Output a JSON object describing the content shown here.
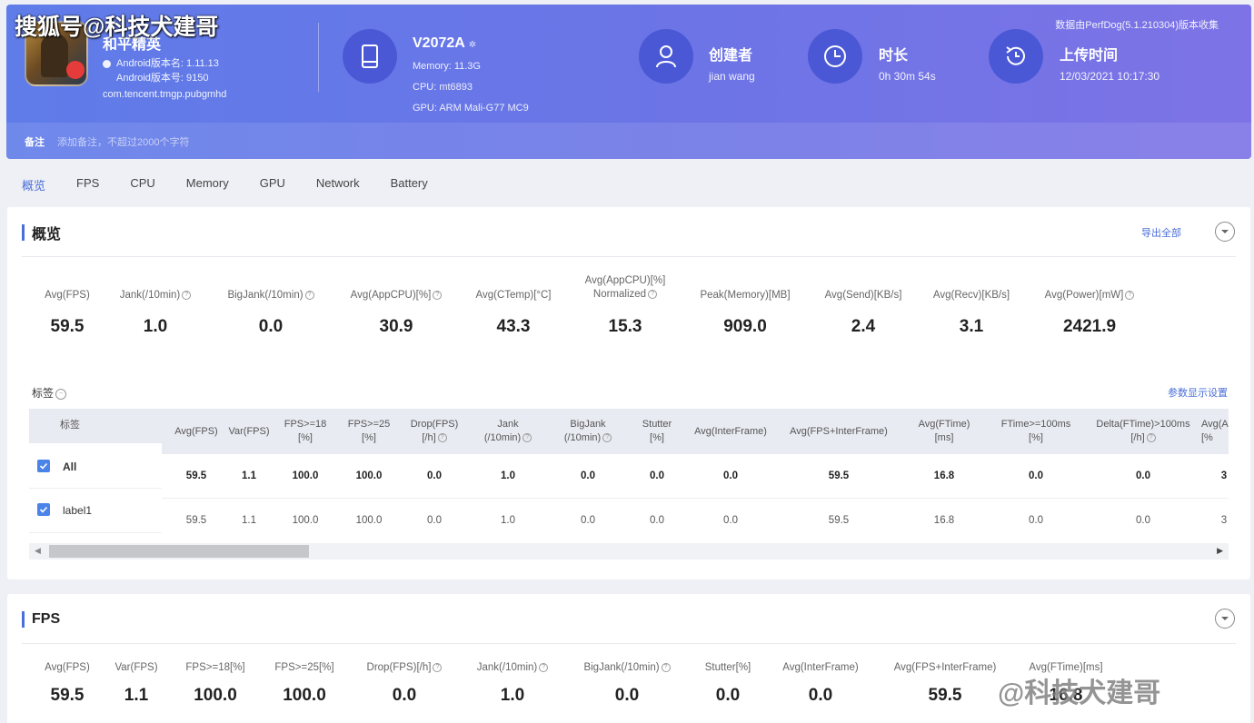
{
  "watermark_top": "搜狐号@科技犬建哥",
  "watermark_bottom": "@科技犬建哥",
  "app": {
    "title": "和平精英",
    "version_name": "Android版本名: 1.11.13",
    "version_code": "Android版本号: 9150",
    "package": "com.tencent.tmgp.pubgmhd"
  },
  "device": {
    "name": "V2072A",
    "memory": "Memory: 11.3G",
    "cpu": "CPU: mt6893",
    "gpu": "GPU: ARM Mali-G77 MC9"
  },
  "creator": {
    "title": "创建者",
    "value": "jian wang"
  },
  "duration": {
    "title": "时长",
    "value": "0h 30m 54s"
  },
  "upload": {
    "title": "上传时间",
    "value": "12/03/2021 10:17:30"
  },
  "record_info": "数据由PerfDog(5.1.210304)版本收集",
  "note": {
    "label": "备注",
    "placeholder": "添加备注，不超过2000个字符"
  },
  "tabs": [
    "概览",
    "FPS",
    "CPU",
    "Memory",
    "GPU",
    "Network",
    "Battery"
  ],
  "overview": {
    "title": "概览",
    "export": "导出全部",
    "metrics": [
      {
        "label": "Avg(FPS)",
        "value": "59.5"
      },
      {
        "label": "Jank(/10min)",
        "value": "1.0"
      },
      {
        "label": "BigJank(/10min)",
        "value": "0.0"
      },
      {
        "label": "Avg(AppCPU)[%]",
        "value": "30.9"
      },
      {
        "label": "Avg(CTemp)[°C]",
        "value": "43.3"
      },
      {
        "label": "Avg(AppCPU)[%]",
        "label2": "Normalized",
        "value": "15.3"
      },
      {
        "label": "Peak(Memory)[MB]",
        "value": "909.0"
      },
      {
        "label": "Avg(Send)[KB/s]",
        "value": "2.4"
      },
      {
        "label": "Avg(Recv)[KB/s]",
        "value": "3.1"
      },
      {
        "label": "Avg(Power)[mW]",
        "value": "2421.9"
      }
    ],
    "labels_title": "标签",
    "labels_setting": "参数显示设置",
    "table": {
      "label_header": "标签",
      "headers": [
        {
          "l1": "Avg(FPS)",
          "l2": ""
        },
        {
          "l1": "Var(FPS)",
          "l2": ""
        },
        {
          "l1": "FPS>=18",
          "l2": "[%]"
        },
        {
          "l1": "FPS>=25",
          "l2": "[%]"
        },
        {
          "l1": "Drop(FPS)",
          "l2": "[/h]"
        },
        {
          "l1": "Jank",
          "l2": "(/10min)"
        },
        {
          "l1": "BigJank",
          "l2": "(/10min)"
        },
        {
          "l1": "Stutter",
          "l2": "[%]"
        },
        {
          "l1": "Avg(InterFrame)",
          "l2": ""
        },
        {
          "l1": "Avg(FPS+InterFrame)",
          "l2": ""
        },
        {
          "l1": "Avg(FTime)",
          "l2": "[ms]"
        },
        {
          "l1": "FTime>=100ms",
          "l2": "[%]"
        },
        {
          "l1": "Delta(FTime)>100ms",
          "l2": "[/h]"
        },
        {
          "l1": "Avg(A",
          "l2": "[%"
        }
      ],
      "rows": [
        {
          "name": "All",
          "cells": [
            "59.5",
            "1.1",
            "100.0",
            "100.0",
            "0.0",
            "1.0",
            "0.0",
            "0.0",
            "0.0",
            "59.5",
            "16.8",
            "0.0",
            "0.0",
            "3"
          ]
        },
        {
          "name": "label1",
          "cells": [
            "59.5",
            "1.1",
            "100.0",
            "100.0",
            "0.0",
            "1.0",
            "0.0",
            "0.0",
            "0.0",
            "59.5",
            "16.8",
            "0.0",
            "0.0",
            "3"
          ]
        }
      ]
    }
  },
  "fps_section": {
    "title": "FPS",
    "metrics": [
      {
        "label": "Avg(FPS)",
        "value": "59.5"
      },
      {
        "label": "Var(FPS)",
        "value": "1.1"
      },
      {
        "label": "FPS>=18[%]",
        "value": "100.0"
      },
      {
        "label": "FPS>=25[%]",
        "value": "100.0"
      },
      {
        "label": "Drop(FPS)[/h]",
        "value": "0.0"
      },
      {
        "label": "Jank(/10min)",
        "value": "1.0"
      },
      {
        "label": "BigJank(/10min)",
        "value": "0.0"
      },
      {
        "label": "Stutter[%]",
        "value": "0.0"
      },
      {
        "label": "Avg(InterFrame)",
        "value": "0.0"
      },
      {
        "label": "Avg(FPS+InterFrame)",
        "value": "59.5"
      },
      {
        "label": "Avg(FTime)[ms]",
        "value": "16.8"
      }
    ]
  },
  "colors": {
    "accent": "#4a6fd8",
    "banner_start": "#5f7ce9",
    "banner_end": "#7d73e6",
    "checkbox": "#4a84e8"
  },
  "icons": [
    "phone-icon",
    "user-icon",
    "clock-icon",
    "history-icon",
    "chevron-down-icon",
    "check-icon",
    "question-icon"
  ]
}
